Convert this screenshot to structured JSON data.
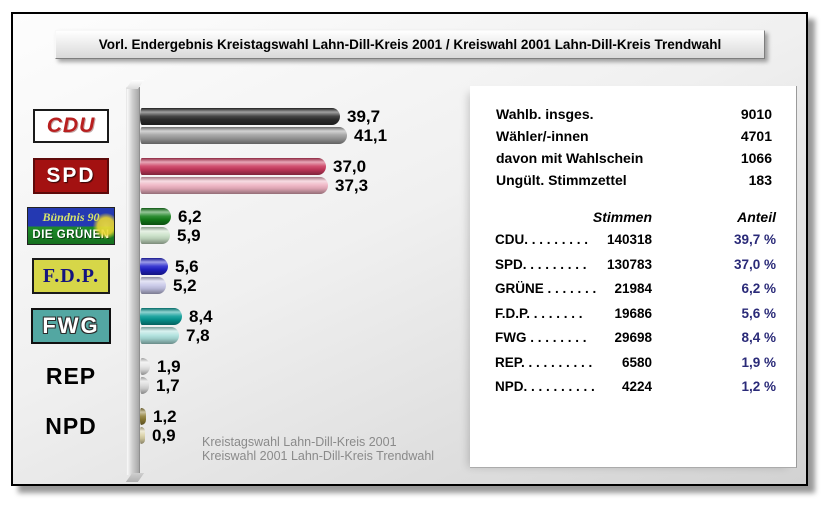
{
  "title_bar": {
    "text": "Vorl. Endergebnis Kreistagswahl Lahn-Dill-Kreis 2001 / Kreiswahl 2001 Lahn-Dill-Kreis Trendwahl"
  },
  "footer": {
    "line1": "Kreistagswahl Lahn-Dill-Kreis 2001",
    "line2": "Kreiswahl 2001 Lahn-Dill-Kreis Trendwahl"
  },
  "panel": {
    "stats": [
      {
        "label": "Wahlb. insges.",
        "value": "9010"
      },
      {
        "label": "Wähler/-innen",
        "value": "4701"
      },
      {
        "label": "davon mit Wahlschein",
        "value": "1066"
      },
      {
        "label": "Ungült. Stimmzettel",
        "value": "183"
      }
    ],
    "table": {
      "headers": {
        "stimmen": "Stimmen",
        "anteil": "Anteil"
      },
      "rows": [
        {
          "party": "CDU",
          "dots": ". . . . . . . . .",
          "stimmen": "140318",
          "anteil": "39,7 %"
        },
        {
          "party": "SPD",
          "dots": ". . . . . . . . .",
          "stimmen": "130783",
          "anteil": "37,0 %"
        },
        {
          "party": "GRÜNE",
          "dots": " . . . . . . .",
          "stimmen": "21984",
          "anteil": "6,2 %"
        },
        {
          "party": "F.D.P.",
          "dots": " . . . . . . .",
          "stimmen": "19686",
          "anteil": "5,6 %"
        },
        {
          "party": "FWG",
          "dots": " . . . . . . . .",
          "stimmen": "29698",
          "anteil": "8,4 %"
        },
        {
          "party": "REP",
          "dots": ". . . . . . . . . .",
          "stimmen": "6580",
          "anteil": "1,9 %"
        },
        {
          "party": "NPD",
          "dots": ". . . . . . . . . .",
          "stimmen": "4224",
          "anteil": "1,2 %"
        }
      ]
    },
    "colors": {
      "anteil_text": "#2a2a78"
    }
  },
  "chart_data": {
    "type": "bar",
    "orientation": "horizontal",
    "title": "",
    "xlabel": "",
    "ylabel": "",
    "categories": [
      "CDU",
      "SPD",
      "GRÜNE",
      "F.D.P.",
      "FWG",
      "REP",
      "NPD"
    ],
    "series": [
      {
        "name": "Kreistagswahl Lahn-Dill-Kreis 2001",
        "values": [
          39.7,
          37.0,
          6.2,
          5.6,
          8.4,
          1.9,
          1.2
        ]
      },
      {
        "name": "Kreiswahl 2001 Lahn-Dill-Kreis Trendwahl",
        "values": [
          41.1,
          37.3,
          5.9,
          5.2,
          7.8,
          1.7,
          0.9
        ]
      }
    ],
    "value_labels": [
      [
        "39,7",
        "41,1"
      ],
      [
        "37,0",
        "37,3"
      ],
      [
        "6,2",
        "5,9"
      ],
      [
        "5,6",
        "5,2"
      ],
      [
        "8,4",
        "7,8"
      ],
      [
        "1,9",
        "1,7"
      ],
      [
        "1,2",
        "0,9"
      ]
    ],
    "bar_colors": [
      [
        "#2e2e2e",
        "#9c9c9c"
      ],
      [
        "#cb3a5e",
        "#eeb0c0"
      ],
      [
        "#14801a",
        "#c8e0c6"
      ],
      [
        "#2222cc",
        "#c6c6e8"
      ],
      [
        "#079b96",
        "#abe0dc"
      ],
      [
        "#e4e4e4",
        "#d8d8d8"
      ],
      [
        "#8e7d36",
        "#d9d0a4"
      ]
    ],
    "xlim": [
      0,
      45
    ],
    "grid": false,
    "legend_position": "none"
  },
  "logos": [
    {
      "party": "CDU",
      "style": "cdu",
      "text": "CDU"
    },
    {
      "party": "SPD",
      "style": "spd",
      "text": "SPD"
    },
    {
      "party": "GRÜNE",
      "style": "gruene",
      "line1": "Bündnis 90",
      "line2": "DIE GRÜNEN"
    },
    {
      "party": "F.D.P.",
      "style": "fdp",
      "text": "F.D.P."
    },
    {
      "party": "FWG",
      "style": "fwg",
      "text": "FWG"
    },
    {
      "party": "REP",
      "style": "plain",
      "text": "REP"
    },
    {
      "party": "NPD",
      "style": "plain",
      "text": "NPD"
    }
  ]
}
